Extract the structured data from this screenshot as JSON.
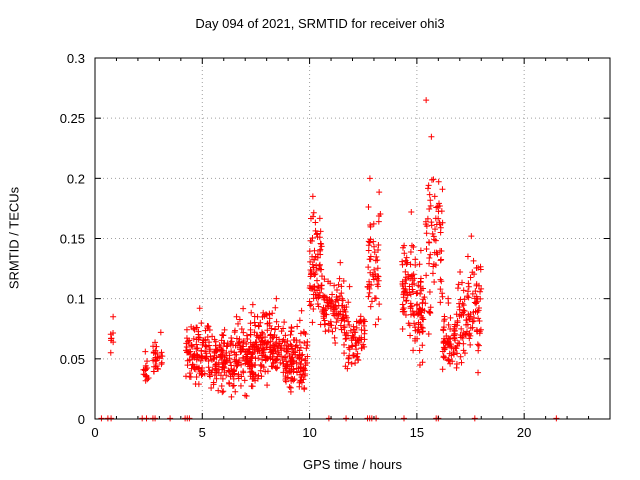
{
  "chart_data": {
    "type": "scatter",
    "title": "Day 094 of 2021, SRMTID for receiver ohi3",
    "xlabel": "GPS time / hours",
    "ylabel": "SRMTID / TECUs",
    "xlim": [
      0,
      24
    ],
    "ylim": [
      0,
      0.3
    ],
    "xticks": [
      "0",
      "5",
      "10",
      "15",
      "20"
    ],
    "yticks": [
      "0",
      "0.05",
      "0.1",
      "0.15",
      "0.2",
      "0.25",
      "0.3"
    ],
    "grid": true,
    "marker": "+",
    "color": "#ff0000",
    "clusters": [
      {
        "x": [
          0.7,
          0.9
        ],
        "y": [
          0.05,
          0.085
        ],
        "n": 7
      },
      {
        "x": [
          2.2,
          2.5
        ],
        "y": [
          0.02,
          0.056
        ],
        "n": 14
      },
      {
        "x": [
          2.7,
          3.2
        ],
        "y": [
          0.03,
          0.072
        ],
        "n": 26
      },
      {
        "x": [
          4.2,
          5.4
        ],
        "y": [
          0.017,
          0.092
        ],
        "n": 110
      },
      {
        "x": [
          5.4,
          6.6
        ],
        "y": [
          0.012,
          0.085
        ],
        "n": 120
      },
      {
        "x": [
          6.6,
          7.6
        ],
        "y": [
          0.012,
          0.095
        ],
        "n": 120
      },
      {
        "x": [
          7.6,
          8.8
        ],
        "y": [
          0.02,
          0.1
        ],
        "n": 130
      },
      {
        "x": [
          8.8,
          9.9
        ],
        "y": [
          0.008,
          0.09
        ],
        "n": 130
      },
      {
        "x": [
          10.0,
          10.6
        ],
        "y": [
          0.06,
          0.185
        ],
        "n": 80
      },
      {
        "x": [
          10.6,
          11.6
        ],
        "y": [
          0.055,
          0.13
        ],
        "n": 90
      },
      {
        "x": [
          11.6,
          12.6
        ],
        "y": [
          0.03,
          0.11
        ],
        "n": 80
      },
      {
        "x": [
          12.7,
          13.3
        ],
        "y": [
          0.05,
          0.2
        ],
        "n": 55
      },
      {
        "x": [
          14.3,
          14.9
        ],
        "y": [
          0.045,
          0.172
        ],
        "n": 70
      },
      {
        "x": [
          14.9,
          15.4
        ],
        "y": [
          0.035,
          0.14
        ],
        "n": 55
      },
      {
        "x": [
          15.4,
          16.2
        ],
        "y": [
          0.04,
          0.265
        ],
        "n": 70
      },
      {
        "x": [
          16.2,
          16.9
        ],
        "y": [
          0.03,
          0.1
        ],
        "n": 70
      },
      {
        "x": [
          16.9,
          17.5
        ],
        "y": [
          0.03,
          0.135
        ],
        "n": 55
      },
      {
        "x": [
          17.5,
          18.0
        ],
        "y": [
          0.035,
          0.152
        ],
        "n": 45
      }
    ],
    "zero_points": [
      0.3,
      0.6,
      0.75,
      2.2,
      2.4,
      2.7,
      2.8,
      3.5,
      4.2,
      4.3,
      4.4,
      10.9,
      11.7,
      12.7,
      12.8,
      12.9,
      13.1,
      14.4,
      15.9,
      16.0,
      17.7,
      21.5
    ]
  }
}
